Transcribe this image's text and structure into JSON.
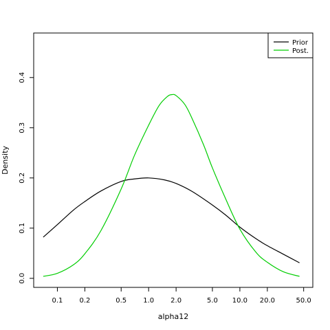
{
  "chart_data": {
    "type": "line",
    "x_scale": "log",
    "xlabel": "alpha12",
    "ylabel": "Density",
    "xlim": [
      0.055,
      63
    ],
    "ylim": [
      -0.018,
      0.4887
    ],
    "x_ticks": [
      0.1,
      0.2,
      0.5,
      1.0,
      2.0,
      5.0,
      10.0,
      20.0,
      50.0
    ],
    "x_tick_labels": [
      "0.1",
      "0.2",
      "0.5",
      "1.0",
      "2.0",
      "5.0",
      "10.0",
      "20.0",
      "50.0"
    ],
    "y_ticks": [
      0.0,
      0.1,
      0.2,
      0.3,
      0.4
    ],
    "y_tick_labels": [
      "0.0",
      "0.1",
      "0.2",
      "0.3",
      "0.4"
    ],
    "legend_position": "top-right",
    "series": [
      {
        "name": "Prior",
        "color": "#000000",
        "x": [
          0.07,
          0.1,
          0.15,
          0.2,
          0.3,
          0.5,
          0.7,
          1.0,
          1.5,
          2.0,
          3.0,
          5.0,
          7.0,
          10.0,
          15.0,
          20.0,
          30.0,
          45.0
        ],
        "y": [
          0.082,
          0.107,
          0.136,
          0.153,
          0.174,
          0.193,
          0.198,
          0.2,
          0.196,
          0.189,
          0.173,
          0.146,
          0.126,
          0.102,
          0.079,
          0.065,
          0.048,
          0.031
        ]
      },
      {
        "name": "Post.",
        "color": "#00cd00",
        "x": [
          0.07,
          0.1,
          0.15,
          0.2,
          0.3,
          0.5,
          0.7,
          1.0,
          1.3,
          1.6,
          1.8,
          2.0,
          2.5,
          3.0,
          4.0,
          5.0,
          7.0,
          10.0,
          15.0,
          20.0,
          30.0,
          45.0
        ],
        "y": [
          0.004,
          0.01,
          0.027,
          0.049,
          0.095,
          0.178,
          0.245,
          0.305,
          0.344,
          0.362,
          0.366,
          0.364,
          0.346,
          0.318,
          0.266,
          0.22,
          0.158,
          0.098,
          0.052,
          0.032,
          0.013,
          0.004
        ]
      }
    ]
  }
}
